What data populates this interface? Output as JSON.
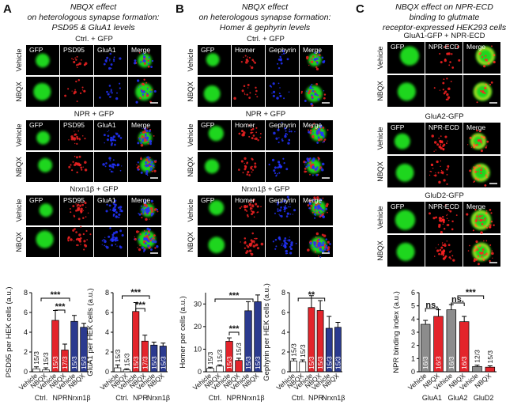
{
  "panels": [
    {
      "letter": "A",
      "title": [
        "NBQX effect",
        "on heterologous synapse formation:",
        "PSD95 & GluA1 levels"
      ],
      "groups": [
        "Ctrl. + GFP",
        "NPR + GFP",
        "Nrxn1β + GFP"
      ],
      "columns": [
        "GFP",
        "PSD95",
        "GluA1",
        "Merge"
      ],
      "rows": [
        "Vehicle",
        "NBQX"
      ]
    },
    {
      "letter": "B",
      "title": [
        "NBQX effect",
        "on heterologous synapse formation:",
        "Homer & gephyrin levels"
      ],
      "groups": [
        "Ctrl. + GFP",
        "NPR + GFP",
        "Nrxn1β + GFP"
      ],
      "columns": [
        "GFP",
        "Homer",
        "Gephyrin",
        "Merge"
      ],
      "rows": [
        "Vehicle",
        "NBQX"
      ]
    },
    {
      "letter": "C",
      "title": [
        "NBQX effect on NPR-ECD",
        "binding to glutmate",
        "receptor-expressed HEK293 cells"
      ],
      "groups": [
        "GluA1-GFP + NPR-ECD",
        "GluA2-GFP",
        "GluD2-GFP"
      ],
      "columns": [
        "GFP",
        "NPR-ECD",
        "Merge"
      ],
      "rows": [
        "Vehicle",
        "NBQX"
      ]
    }
  ],
  "chart_data": [
    {
      "type": "bar",
      "ylabel": "PSD95 per HEK cells (a.u.)",
      "categories": [
        "Vehicle",
        "NBQX",
        "Vehicle",
        "NBQX",
        "Vehicle",
        "NBQX"
      ],
      "groups": [
        "Ctrl.",
        "NPR",
        "Nrxn1β"
      ],
      "values": [
        0.3,
        0.2,
        5.2,
        2.2,
        5.1,
        4.5
      ],
      "errors": [
        0.2,
        0.2,
        1.0,
        0.6,
        0.6,
        0.4
      ],
      "n_labels": [
        "15/3",
        "15/3",
        "15/3",
        "17/3",
        "15/3",
        "15/3"
      ],
      "colors": [
        "#ffffff",
        "#ffffff",
        "#e3242b",
        "#e3242b",
        "#2b3a8f",
        "#2b3a8f"
      ],
      "ylim": [
        0,
        8
      ],
      "yticks": [
        0,
        2,
        4,
        6,
        8
      ],
      "significance": [
        "***",
        "***"
      ]
    },
    {
      "type": "bar",
      "ylabel": "GluA1 per HEK cells (a.u.)",
      "categories": [
        "Vehicle",
        "NBQX",
        "Vehicle",
        "NBQX",
        "Vehicle",
        "NBQX"
      ],
      "groups": [
        "Ctrl.",
        "NPR",
        "Nrxn1β"
      ],
      "values": [
        0.4,
        0.2,
        6.1,
        3.1,
        2.7,
        2.6
      ],
      "errors": [
        0.3,
        0.1,
        0.9,
        0.6,
        0.3,
        0.3
      ],
      "n_labels": [
        "15/3",
        "15/3",
        "15/3",
        "17/3",
        "15/3",
        "15/3"
      ],
      "colors": [
        "#ffffff",
        "#ffffff",
        "#e3242b",
        "#e3242b",
        "#2b3a8f",
        "#2b3a8f"
      ],
      "ylim": [
        0,
        8
      ],
      "yticks": [
        0,
        2,
        4,
        6,
        8
      ],
      "significance": [
        "***",
        "***"
      ]
    },
    {
      "type": "bar",
      "ylabel": "Homer per cells (a.u.)",
      "categories": [
        "Vehicle",
        "NBQX",
        "Vehicle",
        "NBQX",
        "Vehicle",
        "NBQX"
      ],
      "groups": [
        "Ctrl.",
        "NPR",
        "Nrxn1β"
      ],
      "values": [
        1.5,
        2.5,
        13.5,
        5,
        27,
        31
      ],
      "errors": [
        0.5,
        0.5,
        1.5,
        1,
        4,
        3
      ],
      "n_labels": [
        "15/3",
        "15/3",
        "15/3",
        "15/3",
        "15/3",
        "15/3"
      ],
      "colors": [
        "#ffffff",
        "#ffffff",
        "#e3242b",
        "#e3242b",
        "#2b3a8f",
        "#2b3a8f"
      ],
      "ylim": [
        0,
        35
      ],
      "yticks": [
        0,
        10,
        20,
        30
      ],
      "significance": [
        "***",
        "***"
      ]
    },
    {
      "type": "bar",
      "ylabel": "Gephyrin per HEK cells (a.u.)",
      "categories": [
        "Vehicle",
        "NBQX",
        "Vehicle",
        "NBQX",
        "Vehicle",
        "NBQX"
      ],
      "groups": [
        "Ctrl.",
        "NPR",
        "Nrxn1β"
      ],
      "values": [
        1.1,
        1.0,
        6.5,
        6.2,
        4.4,
        4.5
      ],
      "errors": [
        0.2,
        0.2,
        1.2,
        1.0,
        1.2,
        0.5
      ],
      "n_labels": [
        "15/3",
        "15/3",
        "15/3",
        "15/3",
        "15/3",
        "15/3"
      ],
      "colors": [
        "#ffffff",
        "#ffffff",
        "#e3242b",
        "#e3242b",
        "#2b3a8f",
        "#2b3a8f"
      ],
      "ylim": [
        0,
        8
      ],
      "yticks": [
        0,
        2,
        4,
        6,
        8
      ],
      "significance": [
        "**"
      ]
    },
    {
      "type": "bar",
      "ylabel": "NPR binding index (a.u.)",
      "categories": [
        "Vehicle",
        "NBQX",
        "Vehicle",
        "NBQX",
        "Vehicle",
        "NBQX"
      ],
      "groups": [
        "GluA1",
        "GluA2",
        "GluD2"
      ],
      "values": [
        3.6,
        4.2,
        4.7,
        3.8,
        0.4,
        0.35
      ],
      "errors": [
        0.3,
        0.5,
        0.4,
        0.4,
        0.1,
        0.1
      ],
      "n_labels": [
        "16/3",
        "16/3",
        "16/3",
        "16/3",
        "12/3",
        "15/3"
      ],
      "colors": [
        "#8c8c8c",
        "#e3242b",
        "#8c8c8c",
        "#e3242b",
        "#8c8c8c",
        "#e3242b"
      ],
      "ylim": [
        0,
        6
      ],
      "yticks": [
        0,
        1,
        2,
        3,
        4,
        5,
        6
      ],
      "significance": [
        "ns.",
        "ns.",
        "***"
      ]
    }
  ]
}
